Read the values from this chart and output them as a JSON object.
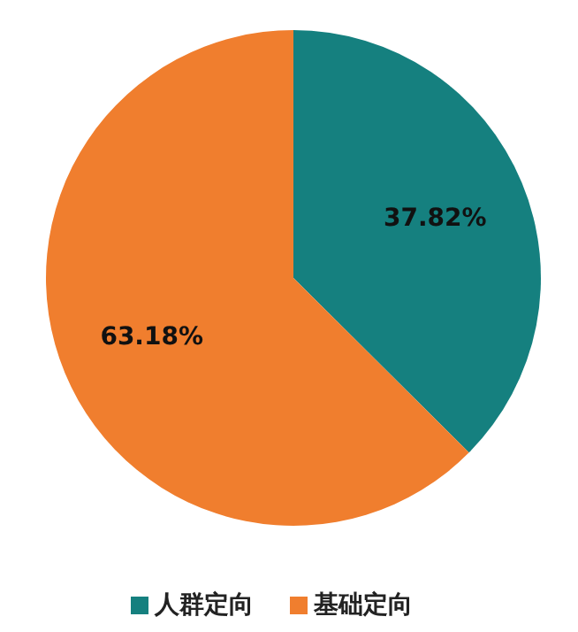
{
  "chart_data": {
    "type": "pie",
    "categories": [
      "人群定向",
      "基础定向"
    ],
    "values": [
      37.82,
      63.18
    ],
    "colors": [
      "#15807f",
      "#f07e2e"
    ],
    "value_labels": [
      "37.82%",
      "63.18%"
    ],
    "legend": "bottom"
  }
}
